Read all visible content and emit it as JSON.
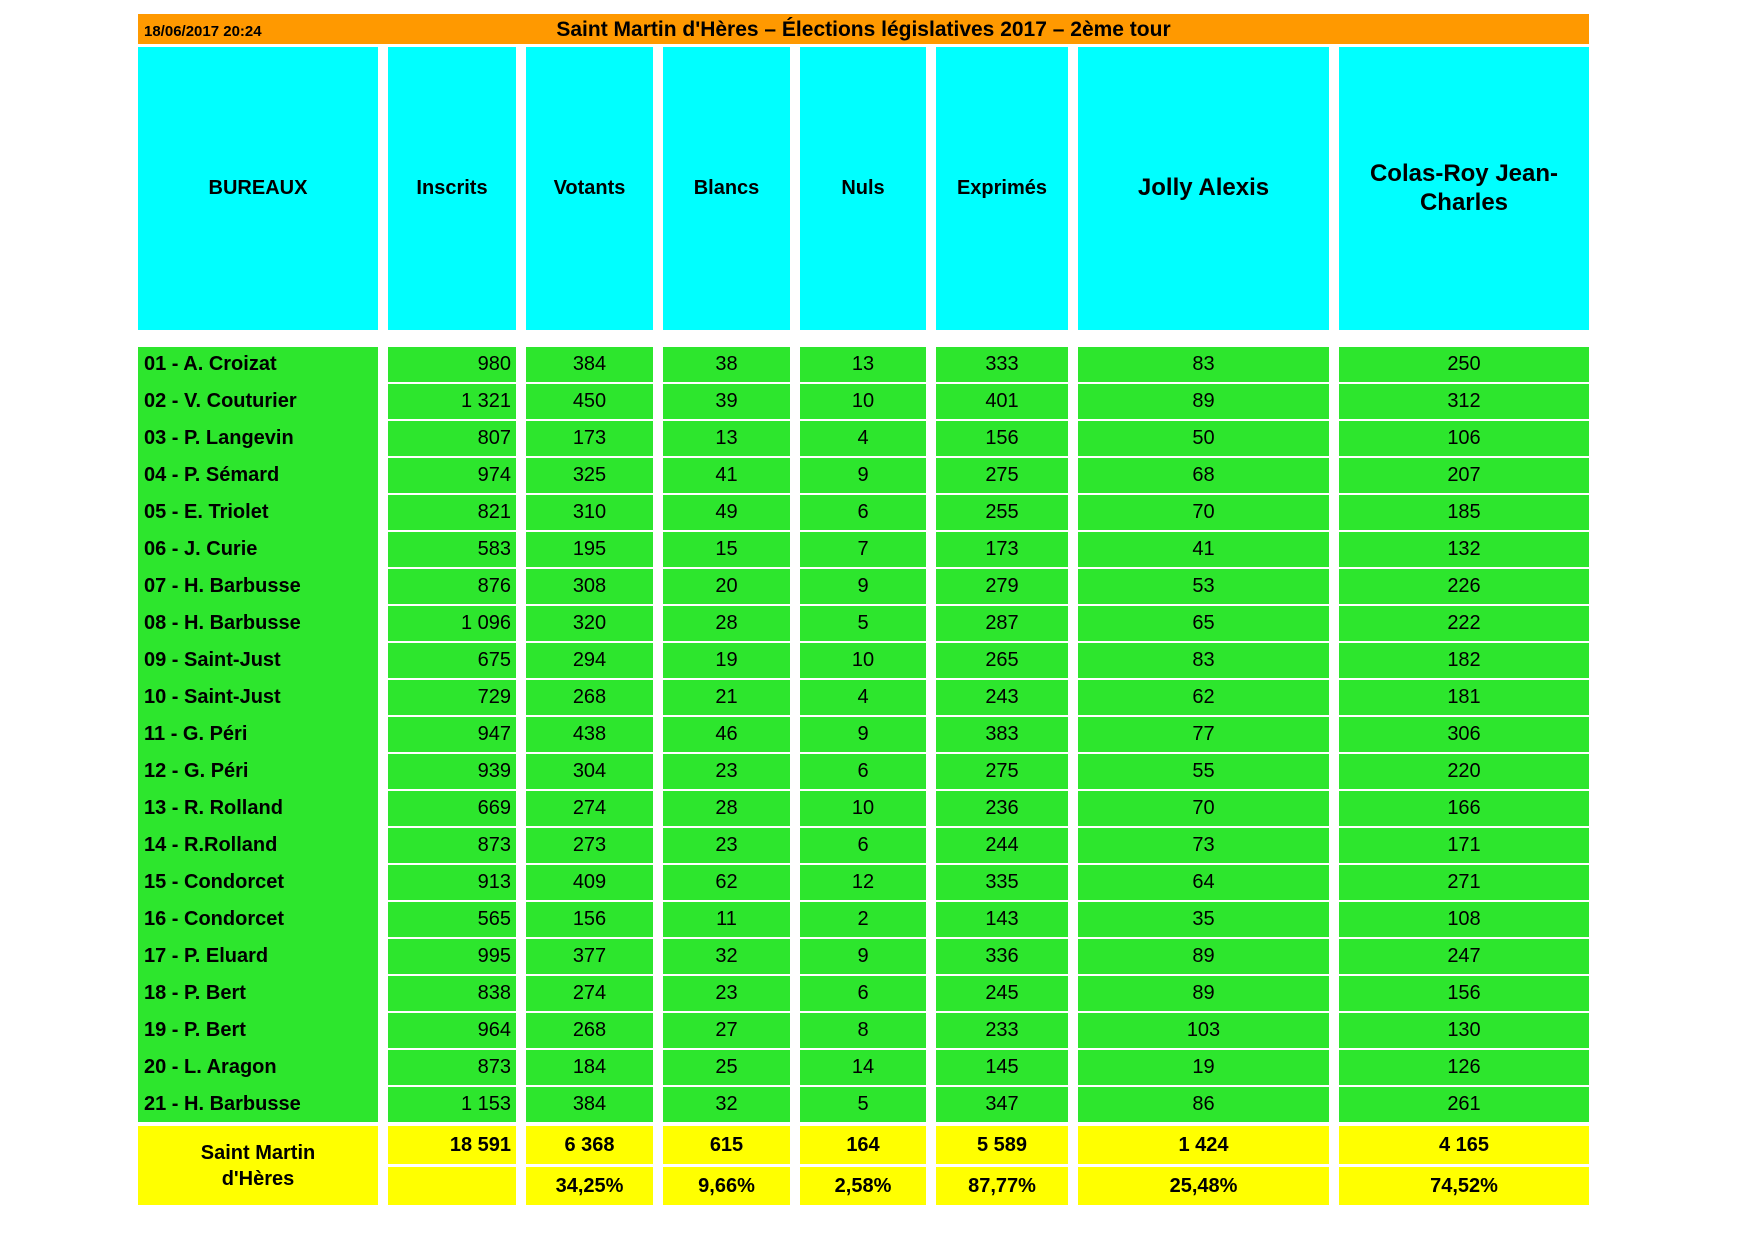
{
  "titlebar": {
    "datetime": "18/06/2017 20:24",
    "title": "Saint Martin d'Hères – Élections législatives 2017 – 2ème tour"
  },
  "columns": [
    "BUREAUX",
    "Inscrits",
    "Votants",
    "Blancs",
    "Nuls",
    "Exprimés",
    "Jolly Alexis",
    "Colas-Roy Jean-Charles"
  ],
  "rows": [
    {
      "name": "01 - A. Croizat",
      "inscrits": "980",
      "votants": "384",
      "blancs": "38",
      "nuls": "13",
      "exprimes": "333",
      "jolly": "83",
      "colas": "250"
    },
    {
      "name": "02 - V. Couturier",
      "inscrits": "1 321",
      "votants": "450",
      "blancs": "39",
      "nuls": "10",
      "exprimes": "401",
      "jolly": "89",
      "colas": "312"
    },
    {
      "name": "03 - P. Langevin",
      "inscrits": "807",
      "votants": "173",
      "blancs": "13",
      "nuls": "4",
      "exprimes": "156",
      "jolly": "50",
      "colas": "106"
    },
    {
      "name": "04 - P. Sémard",
      "inscrits": "974",
      "votants": "325",
      "blancs": "41",
      "nuls": "9",
      "exprimes": "275",
      "jolly": "68",
      "colas": "207"
    },
    {
      "name": "05 - E. Triolet",
      "inscrits": "821",
      "votants": "310",
      "blancs": "49",
      "nuls": "6",
      "exprimes": "255",
      "jolly": "70",
      "colas": "185"
    },
    {
      "name": "06 - J. Curie",
      "inscrits": "583",
      "votants": "195",
      "blancs": "15",
      "nuls": "7",
      "exprimes": "173",
      "jolly": "41",
      "colas": "132"
    },
    {
      "name": "07 - H. Barbusse",
      "inscrits": "876",
      "votants": "308",
      "blancs": "20",
      "nuls": "9",
      "exprimes": "279",
      "jolly": "53",
      "colas": "226"
    },
    {
      "name": "08 - H. Barbusse",
      "inscrits": "1 096",
      "votants": "320",
      "blancs": "28",
      "nuls": "5",
      "exprimes": "287",
      "jolly": "65",
      "colas": "222"
    },
    {
      "name": "09 - Saint-Just",
      "inscrits": "675",
      "votants": "294",
      "blancs": "19",
      "nuls": "10",
      "exprimes": "265",
      "jolly": "83",
      "colas": "182"
    },
    {
      "name": "10 - Saint-Just",
      "inscrits": "729",
      "votants": "268",
      "blancs": "21",
      "nuls": "4",
      "exprimes": "243",
      "jolly": "62",
      "colas": "181"
    },
    {
      "name": "11 - G. Péri",
      "inscrits": "947",
      "votants": "438",
      "blancs": "46",
      "nuls": "9",
      "exprimes": "383",
      "jolly": "77",
      "colas": "306"
    },
    {
      "name": "12 - G. Péri",
      "inscrits": "939",
      "votants": "304",
      "blancs": "23",
      "nuls": "6",
      "exprimes": "275",
      "jolly": "55",
      "colas": "220"
    },
    {
      "name": "13 - R. Rolland",
      "inscrits": "669",
      "votants": "274",
      "blancs": "28",
      "nuls": "10",
      "exprimes": "236",
      "jolly": "70",
      "colas": "166"
    },
    {
      "name": "14 - R.Rolland",
      "inscrits": "873",
      "votants": "273",
      "blancs": "23",
      "nuls": "6",
      "exprimes": "244",
      "jolly": "73",
      "colas": "171"
    },
    {
      "name": "15 - Condorcet",
      "inscrits": "913",
      "votants": "409",
      "blancs": "62",
      "nuls": "12",
      "exprimes": "335",
      "jolly": "64",
      "colas": "271"
    },
    {
      "name": "16 - Condorcet",
      "inscrits": "565",
      "votants": "156",
      "blancs": "11",
      "nuls": "2",
      "exprimes": "143",
      "jolly": "35",
      "colas": "108"
    },
    {
      "name": "17 - P. Eluard",
      "inscrits": "995",
      "votants": "377",
      "blancs": "32",
      "nuls": "9",
      "exprimes": "336",
      "jolly": "89",
      "colas": "247"
    },
    {
      "name": "18 - P. Bert",
      "inscrits": "838",
      "votants": "274",
      "blancs": "23",
      "nuls": "6",
      "exprimes": "245",
      "jolly": "89",
      "colas": "156"
    },
    {
      "name": "19 - P. Bert",
      "inscrits": "964",
      "votants": "268",
      "blancs": "27",
      "nuls": "8",
      "exprimes": "233",
      "jolly": "103",
      "colas": "130"
    },
    {
      "name": "20 - L. Aragon",
      "inscrits": "873",
      "votants": "184",
      "blancs": "25",
      "nuls": "14",
      "exprimes": "145",
      "jolly": "19",
      "colas": "126"
    },
    {
      "name": "21 - H. Barbusse",
      "inscrits": "1 153",
      "votants": "384",
      "blancs": "32",
      "nuls": "5",
      "exprimes": "347",
      "jolly": "86",
      "colas": "261"
    }
  ],
  "totals": {
    "name_line1": "Saint Martin",
    "name_line2": "d'Hères",
    "inscrits": "18 591",
    "votants": "6 368",
    "blancs": "615",
    "nuls": "164",
    "exprimes": "5 589",
    "jolly": "1 424",
    "colas": "4 165"
  },
  "percentages": {
    "inscrits": "",
    "votants": "34,25%",
    "blancs": "9,66%",
    "nuls": "2,58%",
    "exprimes": "87,77%",
    "jolly": "25,48%",
    "colas": "74,52%"
  },
  "colors": {
    "titlebar_orange": "#FF9900",
    "header_cyan": "#00FFFF",
    "row_green": "#2DE62D",
    "totals_yellow": "#FFFF00",
    "text": "#000000"
  },
  "chart_data": {
    "type": "table",
    "title": "Saint Martin d'Hères – Élections législatives 2017 – 2ème tour",
    "timestamp": "18/06/2017 20:24",
    "columns": [
      "BUREAUX",
      "Inscrits",
      "Votants",
      "Blancs",
      "Nuls",
      "Exprimés",
      "Jolly Alexis",
      "Colas-Roy Jean-Charles"
    ],
    "rows": [
      [
        "01 - A. Croizat",
        980,
        384,
        38,
        13,
        333,
        83,
        250
      ],
      [
        "02 - V. Couturier",
        1321,
        450,
        39,
        10,
        401,
        89,
        312
      ],
      [
        "03 - P. Langevin",
        807,
        173,
        13,
        4,
        156,
        50,
        106
      ],
      [
        "04 - P. Sémard",
        974,
        325,
        41,
        9,
        275,
        68,
        207
      ],
      [
        "05 - E. Triolet",
        821,
        310,
        49,
        6,
        255,
        70,
        185
      ],
      [
        "06 - J. Curie",
        583,
        195,
        15,
        7,
        173,
        41,
        132
      ],
      [
        "07 - H. Barbusse",
        876,
        308,
        20,
        9,
        279,
        53,
        226
      ],
      [
        "08 - H. Barbusse",
        1096,
        320,
        28,
        5,
        287,
        65,
        222
      ],
      [
        "09 - Saint-Just",
        675,
        294,
        19,
        10,
        265,
        83,
        182
      ],
      [
        "10 - Saint-Just",
        729,
        268,
        21,
        4,
        243,
        62,
        181
      ],
      [
        "11 - G. Péri",
        947,
        438,
        46,
        9,
        383,
        77,
        306
      ],
      [
        "12 - G. Péri",
        939,
        304,
        23,
        6,
        275,
        55,
        220
      ],
      [
        "13 - R. Rolland",
        669,
        274,
        28,
        10,
        236,
        70,
        166
      ],
      [
        "14 - R.Rolland",
        873,
        273,
        23,
        6,
        244,
        73,
        171
      ],
      [
        "15 - Condorcet",
        913,
        409,
        62,
        12,
        335,
        64,
        271
      ],
      [
        "16 - Condorcet",
        565,
        156,
        11,
        2,
        143,
        35,
        108
      ],
      [
        "17 - P. Eluard",
        995,
        377,
        32,
        9,
        336,
        89,
        247
      ],
      [
        "18 - P. Bert",
        838,
        274,
        23,
        6,
        245,
        89,
        156
      ],
      [
        "19 - P. Bert",
        964,
        268,
        27,
        8,
        233,
        103,
        130
      ],
      [
        "20 - L. Aragon",
        873,
        184,
        25,
        14,
        145,
        19,
        126
      ],
      [
        "21 - H. Barbusse",
        1153,
        384,
        32,
        5,
        347,
        86,
        261
      ]
    ],
    "totals_row": [
      "Saint Martin d'Hères",
      18591,
      6368,
      615,
      164,
      5589,
      1424,
      4165
    ],
    "percentages_row": [
      "Saint Martin d'Hères",
      null,
      "34,25%",
      "9,66%",
      "2,58%",
      "87,77%",
      "25,48%",
      "74,52%"
    ]
  }
}
